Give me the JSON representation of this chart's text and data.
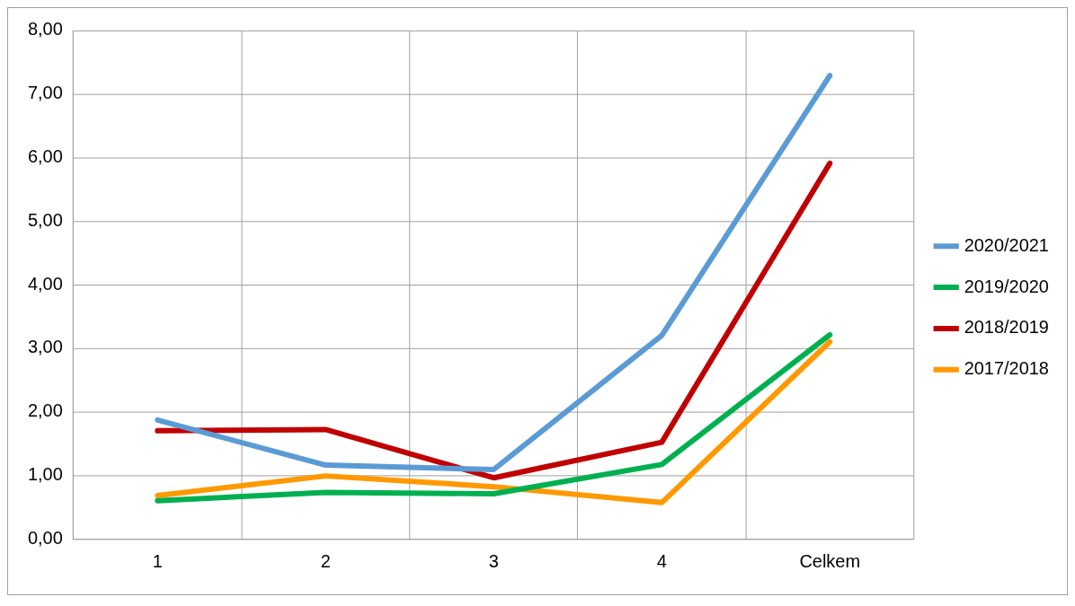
{
  "chart_data": {
    "type": "line",
    "categories": [
      "1",
      "2",
      "3",
      "4",
      "Celkem"
    ],
    "series": [
      {
        "name": "2020/2021",
        "color": "#5b9bd5",
        "values": [
          1.87,
          1.16,
          1.09,
          3.2,
          7.29
        ]
      },
      {
        "name": "2019/2020",
        "color": "#00b050",
        "values": [
          0.6,
          0.73,
          0.71,
          1.17,
          3.21
        ]
      },
      {
        "name": "2018/2019",
        "color": "#c00000",
        "values": [
          1.7,
          1.72,
          0.96,
          1.52,
          5.91
        ]
      },
      {
        "name": "2017/2018",
        "color": "#ff9900",
        "values": [
          0.68,
          0.99,
          0.82,
          0.57,
          3.1
        ]
      }
    ],
    "ylim": [
      0,
      8
    ],
    "yticks": [
      {
        "value": 0,
        "label": "0,00"
      },
      {
        "value": 1,
        "label": "1,00"
      },
      {
        "value": 2,
        "label": "2,00"
      },
      {
        "value": 3,
        "label": "3,00"
      },
      {
        "value": 4,
        "label": "4,00"
      },
      {
        "value": 5,
        "label": "5,00"
      },
      {
        "value": 6,
        "label": "6,00"
      },
      {
        "value": 7,
        "label": "7,00"
      },
      {
        "value": 8,
        "label": "8,00"
      }
    ],
    "grid": true,
    "legend": "right",
    "marker": "none",
    "line_style": "solid"
  }
}
